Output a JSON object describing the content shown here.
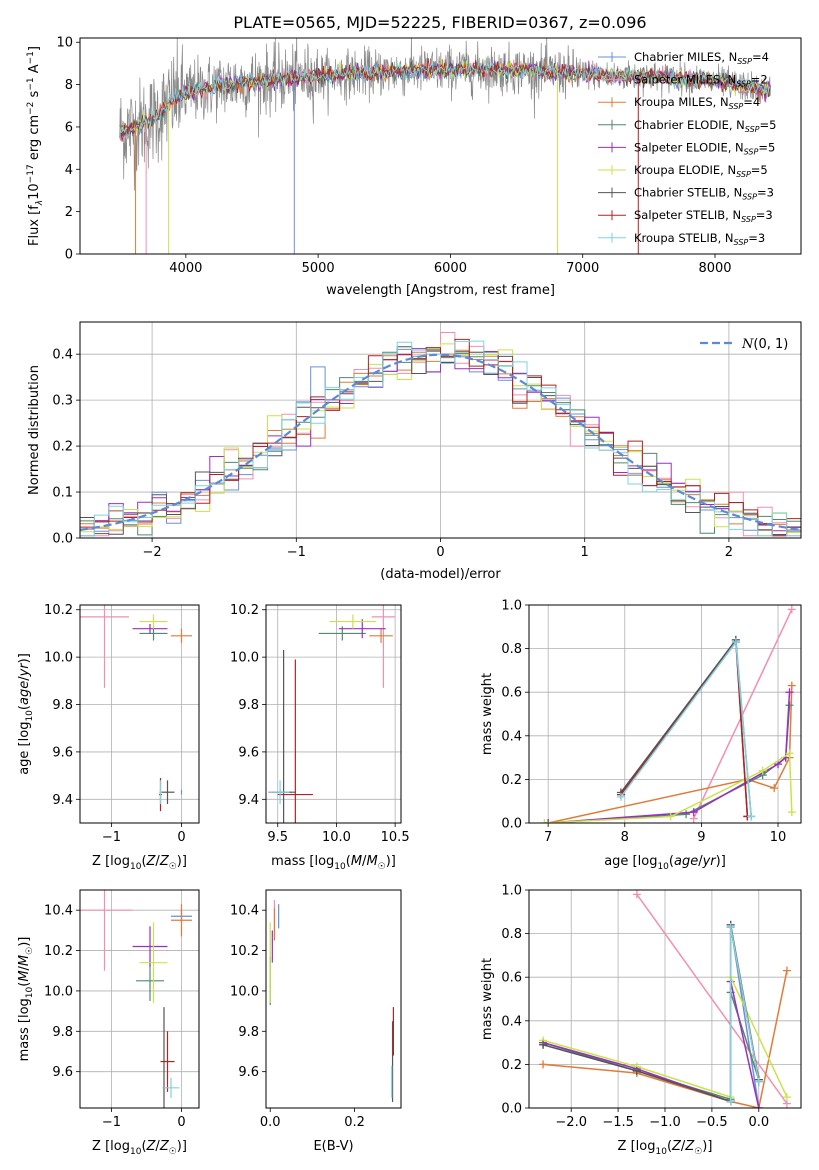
{
  "figure": {
    "title": "PLATE=0565, MJD=52225, FIBERID=0367, z=0.096"
  },
  "colors": {
    "Chabrier MILES": "#6a8fd8",
    "Salpeter MILES": "#f28fb1",
    "Kroupa MILES": "#e07b39",
    "Chabrier ELODIE": "#4f8a6e",
    "Salpeter ELODIE": "#9b2fc0",
    "Kroupa ELODIE": "#c9e34a",
    "Chabrier STELIB": "#555555",
    "Salpeter STELIB": "#b22222",
    "Kroupa STELIB": "#7fd3df",
    "data": "#888888",
    "gauss": "#5b8bd6"
  },
  "chart_data": [
    {
      "id": "spectrum",
      "type": "line",
      "xlabel": "wavelength [Angstrom, rest frame]",
      "ylabel": "Flux [f_λ10^-17 erg cm^-2 s^-1 A^-1]",
      "xlim": [
        3200,
        8650
      ],
      "ylim": [
        0,
        10.2
      ],
      "xticks": [
        4000,
        5000,
        6000,
        7000,
        8000
      ],
      "yticks": [
        0,
        2,
        4,
        6,
        8,
        10
      ],
      "grid": false,
      "legend_position": "top-right",
      "legend": [
        {
          "label": "Chabrier MILES, N_SSP=4",
          "key": "Chabrier MILES"
        },
        {
          "label": "Salpeter MILES, N_SSP=2",
          "key": "Salpeter MILES"
        },
        {
          "label": "Kroupa MILES, N_SSP=4",
          "key": "Kroupa MILES"
        },
        {
          "label": "Chabrier ELODIE, N_SSP=5",
          "key": "Chabrier ELODIE"
        },
        {
          "label": "Salpeter ELODIE, N_SSP=5",
          "key": "Salpeter ELODIE"
        },
        {
          "label": "Kroupa ELODIE, N_SSP=5",
          "key": "Kroupa ELODIE"
        },
        {
          "label": "Chabrier STELIB, N_SSP=3",
          "key": "Chabrier STELIB"
        },
        {
          "label": "Salpeter STELIB, N_SSP=3",
          "key": "Salpeter STELIB"
        },
        {
          "label": "Kroupa STELIB, N_SSP=3",
          "key": "Kroupa STELIB"
        }
      ],
      "continuum": {
        "x": [
          3500,
          3600,
          3700,
          3800,
          3900,
          4000,
          4200,
          4400,
          4600,
          4800,
          5000,
          5500,
          6000,
          6500,
          7000,
          7300,
          7500,
          8000,
          8400
        ],
        "y": [
          5.8,
          5.9,
          6.2,
          6.6,
          7.3,
          7.6,
          7.9,
          8.1,
          8.2,
          8.3,
          8.4,
          8.6,
          8.7,
          8.7,
          8.5,
          8.4,
          8.4,
          8.2,
          7.7
        ]
      }
    },
    {
      "id": "residuals",
      "type": "histogram",
      "xlabel": "(data-model)/error",
      "ylabel": "Normed distribution",
      "xlim": [
        -2.5,
        2.5
      ],
      "ylim": [
        0,
        0.47
      ],
      "xticks": [
        -2,
        -1,
        0,
        1,
        2
      ],
      "yticks": [
        0.0,
        0.1,
        0.2,
        0.3,
        0.4
      ],
      "grid": true,
      "legend_position": "top-right",
      "legend": [
        {
          "label": "N(0,1)",
          "key": "gauss"
        }
      ],
      "bin_width": 0.1,
      "bin_start": -2.5
    },
    {
      "id": "age_vs_Z",
      "type": "errorbar",
      "xlabel": "Z [log10(Z/Z☉)]",
      "ylabel": "age  [log10(age/yr)]",
      "xlim": [
        -1.45,
        0.25
      ],
      "ylim": [
        9.3,
        10.22
      ],
      "xticks": [
        -1,
        0
      ],
      "yticks": [
        9.4,
        9.6,
        9.8,
        10.0,
        10.2
      ],
      "grid": true,
      "points": [
        {
          "key": "Chabrier MILES",
          "x": 0.0,
          "y": 9.43,
          "xerr": 0.0,
          "yerr": 0.01
        },
        {
          "key": "Salpeter MILES",
          "x": -1.1,
          "y": 10.17,
          "xerr": 0.35,
          "yerr": 0.3
        },
        {
          "key": "Kroupa MILES",
          "x": 0.0,
          "y": 10.09,
          "xerr": 0.15,
          "yerr": 0.03
        },
        {
          "key": "Chabrier ELODIE",
          "x": -0.4,
          "y": 10.1,
          "xerr": 0.2,
          "yerr": 0.03
        },
        {
          "key": "Salpeter ELODIE",
          "x": -0.45,
          "y": 10.12,
          "xerr": 0.25,
          "yerr": 0.02
        },
        {
          "key": "Kroupa ELODIE",
          "x": -0.4,
          "y": 10.15,
          "xerr": 0.2,
          "yerr": 0.03
        },
        {
          "key": "Chabrier STELIB",
          "x": -0.2,
          "y": 9.43,
          "xerr": 0.1,
          "yerr": 0.05
        },
        {
          "key": "Salpeter STELIB",
          "x": -0.3,
          "y": 9.42,
          "xerr": 0.02,
          "yerr": 0.07
        },
        {
          "key": "Kroupa STELIB",
          "x": -0.3,
          "y": 9.43,
          "xerr": 0.02,
          "yerr": 0.05
        }
      ]
    },
    {
      "id": "age_vs_mass",
      "type": "errorbar",
      "xlabel": "mass [log10(M/M☉)]",
      "ylabel": "",
      "xlim": [
        9.4,
        10.55
      ],
      "ylim": [
        9.3,
        10.22
      ],
      "xticks": [
        9.5,
        10.0,
        10.5
      ],
      "yticks": [
        9.4,
        9.6,
        9.8,
        10.0,
        10.2
      ],
      "grid": true,
      "points": [
        {
          "key": "Chabrier MILES",
          "x": 9.52,
          "y": 9.43,
          "xerr": 0.1,
          "yerr": 0.01
        },
        {
          "key": "Salpeter MILES",
          "x": 10.4,
          "y": 10.17,
          "xerr": 0.1,
          "yerr": 0.3
        },
        {
          "key": "Kroupa MILES",
          "x": 10.38,
          "y": 10.09,
          "xerr": 0.1,
          "yerr": 0.03
        },
        {
          "key": "Chabrier ELODIE",
          "x": 10.05,
          "y": 10.1,
          "xerr": 0.2,
          "yerr": 0.03
        },
        {
          "key": "Salpeter ELODIE",
          "x": 10.22,
          "y": 10.12,
          "xerr": 0.2,
          "yerr": 0.04
        },
        {
          "key": "Kroupa ELODIE",
          "x": 10.14,
          "y": 10.15,
          "xerr": 0.2,
          "yerr": 0.03
        },
        {
          "key": "Chabrier STELIB",
          "x": 9.55,
          "y": 9.43,
          "xerr": 0.1,
          "yerr": 0.6
        },
        {
          "key": "Salpeter STELIB",
          "x": 9.65,
          "y": 9.42,
          "xerr": 0.15,
          "yerr": 0.57
        },
        {
          "key": "Kroupa STELIB",
          "x": 9.52,
          "y": 9.43,
          "xerr": 0.08,
          "yerr": 0.05
        }
      ]
    },
    {
      "id": "mass_weight_vs_age",
      "type": "line",
      "xlabel": "age  [log10(age/yr)]",
      "ylabel": "mass weight",
      "xlim": [
        6.75,
        10.3
      ],
      "ylim": [
        0,
        1
      ],
      "xticks": [
        7,
        8,
        9,
        10
      ],
      "yticks": [
        0.0,
        0.2,
        0.4,
        0.6,
        0.8,
        1.0
      ],
      "grid": true,
      "series": [
        {
          "key": "Chabrier MILES",
          "x": [
            7.95,
            9.45,
            9.65
          ],
          "y": [
            0.13,
            0.84,
            0.03
          ]
        },
        {
          "key": "Salpeter MILES",
          "x": [
            8.9,
            10.18
          ],
          "y": [
            0.02,
            0.98
          ]
        },
        {
          "key": "Kroupa MILES",
          "x": [
            7.0,
            9.6,
            9.95,
            10.15,
            10.18
          ],
          "y": [
            0.0,
            0.2,
            0.16,
            0.3,
            0.63
          ]
        },
        {
          "key": "Chabrier ELODIE",
          "x": [
            7.0,
            8.8,
            9.8,
            10.1,
            10.15
          ],
          "y": [
            0.0,
            0.04,
            0.22,
            0.3,
            0.54
          ]
        },
        {
          "key": "Salpeter ELODIE",
          "x": [
            7.0,
            8.9,
            10.0,
            10.1,
            10.15
          ],
          "y": [
            0.0,
            0.05,
            0.27,
            0.3,
            0.6
          ]
        },
        {
          "key": "Kroupa ELODIE",
          "x": [
            6.95,
            8.6,
            9.8,
            10.15,
            10.18
          ],
          "y": [
            0.0,
            0.03,
            0.24,
            0.32,
            0.05
          ]
        },
        {
          "key": "Chabrier STELIB",
          "x": [
            7.95,
            9.45,
            9.6
          ],
          "y": [
            0.14,
            0.84,
            0.03
          ]
        },
        {
          "key": "Salpeter STELIB",
          "x": [
            7.95,
            9.45,
            9.6
          ],
          "y": [
            0.13,
            0.83,
            0.03
          ]
        },
        {
          "key": "Kroupa STELIB",
          "x": [
            7.95,
            9.45,
            9.65
          ],
          "y": [
            0.12,
            0.83,
            0.03
          ]
        }
      ]
    },
    {
      "id": "mass_vs_Z",
      "type": "errorbar",
      "xlabel": "Z [log10(Z/Z☉)]",
      "ylabel": "mass [log10(M/M☉)]",
      "xlim": [
        -1.45,
        0.25
      ],
      "ylim": [
        9.42,
        10.5
      ],
      "xticks": [
        -1,
        0
      ],
      "yticks": [
        9.6,
        9.8,
        10.0,
        10.2,
        10.4
      ],
      "grid": true,
      "points": [
        {
          "key": "Chabrier MILES",
          "x": 0.0,
          "y": 10.37,
          "xerr": 0.15,
          "yerr": 0.03
        },
        {
          "key": "Salpeter MILES",
          "x": -1.1,
          "y": 10.4,
          "xerr": 0.4,
          "yerr": 0.3
        },
        {
          "key": "Kroupa MILES",
          "x": 0.0,
          "y": 10.35,
          "xerr": 0.15,
          "yerr": 0.08
        },
        {
          "key": "Chabrier ELODIE",
          "x": -0.45,
          "y": 10.05,
          "xerr": 0.2,
          "yerr": 0.1
        },
        {
          "key": "Salpeter ELODIE",
          "x": -0.45,
          "y": 10.22,
          "xerr": 0.25,
          "yerr": 0.1
        },
        {
          "key": "Kroupa ELODIE",
          "x": -0.4,
          "y": 10.14,
          "xerr": 0.2,
          "yerr": 0.2
        },
        {
          "key": "Chabrier STELIB",
          "x": -0.25,
          "y": 9.52,
          "xerr": 0.02,
          "yerr": 0.4
        },
        {
          "key": "Salpeter STELIB",
          "x": -0.2,
          "y": 9.65,
          "xerr": 0.1,
          "yerr": 0.15
        },
        {
          "key": "Kroupa STELIB",
          "x": -0.15,
          "y": 9.52,
          "xerr": 0.12,
          "yerr": 0.05
        }
      ]
    },
    {
      "id": "mass_vs_ebv",
      "type": "errorbar",
      "xlabel": "E(B-V)",
      "ylabel": "",
      "xlim": [
        -0.01,
        0.31
      ],
      "ylim": [
        9.42,
        10.5
      ],
      "xticks": [
        0.0,
        0.2
      ],
      "yticks": [
        9.6,
        9.8,
        10.0,
        10.2,
        10.4
      ],
      "grid": false,
      "points": [
        {
          "key": "Chabrier MILES",
          "x": 0.02,
          "y": 10.37,
          "xerr": 0.0,
          "yerr": 0.06
        },
        {
          "key": "Salpeter MILES",
          "x": 0.01,
          "y": 10.35,
          "xerr": 0.0,
          "yerr": 0.1
        },
        {
          "key": "Kroupa MILES",
          "x": 0.01,
          "y": 10.33,
          "xerr": 0.0,
          "yerr": 0.08
        },
        {
          "key": "Chabrier ELODIE",
          "x": 0.0,
          "y": 10.05,
          "xerr": 0.0,
          "yerr": 0.12
        },
        {
          "key": "Salpeter ELODIE",
          "x": 0.005,
          "y": 10.22,
          "xerr": 0.0,
          "yerr": 0.08
        },
        {
          "key": "Kroupa ELODIE",
          "x": 0.0,
          "y": 10.14,
          "xerr": 0.0,
          "yerr": 0.2
        },
        {
          "key": "Chabrier STELIB",
          "x": 0.29,
          "y": 9.65,
          "xerr": 0.0,
          "yerr": 0.2
        },
        {
          "key": "Salpeter STELIB",
          "x": 0.292,
          "y": 9.8,
          "xerr": 0.0,
          "yerr": 0.12
        },
        {
          "key": "Kroupa STELIB",
          "x": 0.288,
          "y": 9.55,
          "xerr": 0.0,
          "yerr": 0.08
        }
      ]
    },
    {
      "id": "mass_weight_vs_Z",
      "type": "line",
      "xlabel": "Z [log10(Z/Z☉)]",
      "ylabel": "mass weight",
      "xlim": [
        -2.45,
        0.45
      ],
      "ylim": [
        0,
        1
      ],
      "xticks": [
        -2.0,
        -1.5,
        -1.0,
        -0.5,
        0.0
      ],
      "yticks": [
        0.0,
        0.2,
        0.4,
        0.6,
        0.8,
        1.0
      ],
      "grid": true,
      "series": [
        {
          "key": "Chabrier MILES",
          "x": [
            -2.3,
            -1.3,
            -0.3,
            -0.3,
            0.0
          ],
          "y": [
            0.29,
            0.17,
            0.03,
            0.84,
            0.0
          ]
        },
        {
          "key": "Salpeter MILES",
          "x": [
            -1.3,
            0.3
          ],
          "y": [
            0.98,
            0.02
          ]
        },
        {
          "key": "Kroupa MILES",
          "x": [
            -2.3,
            -1.3,
            -0.3,
            0.0,
            0.3
          ],
          "y": [
            0.2,
            0.16,
            0.03,
            0.0,
            0.63
          ]
        },
        {
          "key": "Chabrier ELODIE",
          "x": [
            -2.3,
            -1.3,
            -0.3,
            -0.3,
            0.0
          ],
          "y": [
            0.3,
            0.17,
            0.04,
            0.53,
            0.13
          ]
        },
        {
          "key": "Salpeter ELODIE",
          "x": [
            -2.3,
            -1.3,
            -0.3,
            -0.3,
            0.0
          ],
          "y": [
            0.3,
            0.18,
            0.03,
            0.58,
            0.0
          ]
        },
        {
          "key": "Kroupa ELODIE",
          "x": [
            -2.3,
            -1.3,
            -0.3,
            -0.3,
            0.3
          ],
          "y": [
            0.31,
            0.19,
            0.05,
            0.6,
            0.05
          ]
        },
        {
          "key": "Chabrier STELIB",
          "x": [
            -2.3,
            -1.3,
            -0.3,
            -0.3,
            0.0
          ],
          "y": [
            0.29,
            0.17,
            0.03,
            0.84,
            0.13
          ]
        },
        {
          "key": "Salpeter STELIB",
          "x": [
            -0.3,
            -0.3,
            0.0
          ],
          "y": [
            0.03,
            0.83,
            0.12
          ]
        },
        {
          "key": "Kroupa STELIB",
          "x": [
            -0.3,
            -0.3,
            0.0
          ],
          "y": [
            0.03,
            0.83,
            0.12
          ]
        }
      ]
    }
  ]
}
